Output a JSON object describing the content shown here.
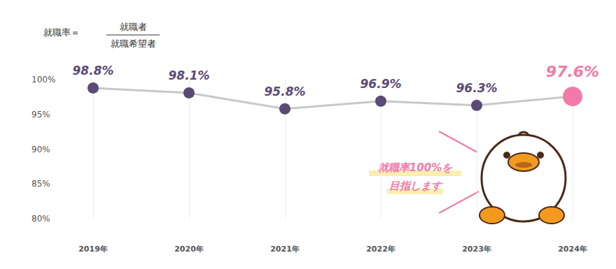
{
  "chart_data": {
    "type": "line",
    "formula": {
      "lhs": "就職率＝",
      "numerator": "就職者",
      "denominator": "就職希望者"
    },
    "annotations": [
      "就職率100%を",
      "目指します"
    ],
    "categories": [
      "2019年",
      "2020年",
      "2021年",
      "2022年",
      "2023年",
      "2024年"
    ],
    "values": [
      98.8,
      98.1,
      95.8,
      96.9,
      96.3,
      97.6
    ],
    "value_labels": [
      "98.8%",
      "98.1%",
      "95.8%",
      "96.9%",
      "96.3%",
      "97.6%"
    ],
    "colors": [
      "#5b4a78",
      "#5b4a78",
      "#5b4a78",
      "#5b4a78",
      "#5b4a78",
      "#f27aa8"
    ],
    "color": "#c8c8c8",
    "ylim": [
      80,
      100
    ],
    "yticks": [
      {
        "value": 80,
        "label": "80%"
      },
      {
        "value": 85,
        "label": "85%"
      },
      {
        "value": 90,
        "label": "90%"
      },
      {
        "value": 95,
        "label": "95%"
      },
      {
        "value": 100,
        "label": "100%"
      }
    ],
    "grid": true,
    "data_labels": true
  }
}
